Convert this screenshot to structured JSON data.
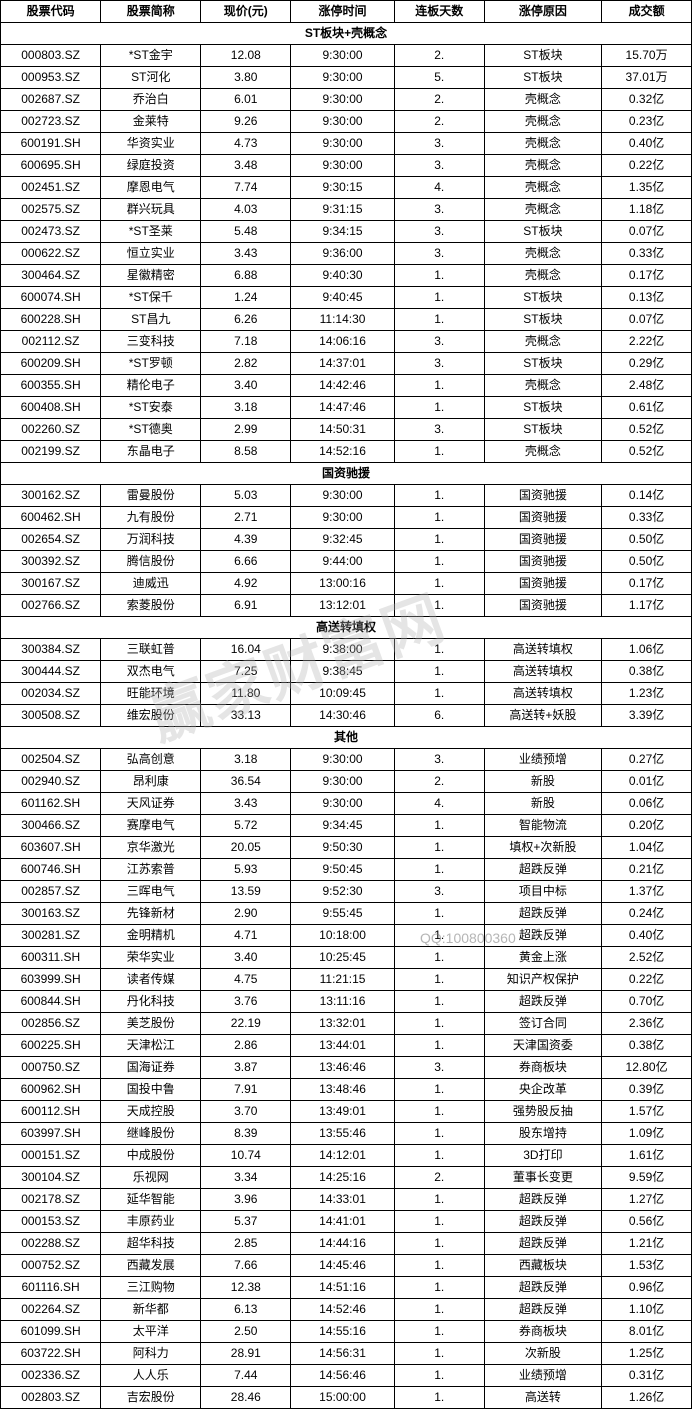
{
  "headers": [
    "股票代码",
    "股票简称",
    "现价(元)",
    "涨停时间",
    "连板天数",
    "涨停原因",
    "成交额"
  ],
  "watermark": "赢家财富网",
  "qq_text": "QQ:100800360",
  "sections": [
    {
      "title": "ST板块+壳概念",
      "rows": [
        [
          "000803.SZ",
          "*ST金宇",
          "12.08",
          "9:30:00",
          "2.",
          "ST板块",
          "15.70万"
        ],
        [
          "000953.SZ",
          "ST河化",
          "3.80",
          "9:30:00",
          "5.",
          "ST板块",
          "37.01万"
        ],
        [
          "002687.SZ",
          "乔治白",
          "6.01",
          "9:30:00",
          "2.",
          "壳概念",
          "0.32亿"
        ],
        [
          "002723.SZ",
          "金莱特",
          "9.26",
          "9:30:00",
          "2.",
          "壳概念",
          "0.23亿"
        ],
        [
          "600191.SH",
          "华资实业",
          "4.73",
          "9:30:00",
          "3.",
          "壳概念",
          "0.40亿"
        ],
        [
          "600695.SH",
          "绿庭投资",
          "3.48",
          "9:30:00",
          "3.",
          "壳概念",
          "0.22亿"
        ],
        [
          "002451.SZ",
          "摩恩电气",
          "7.74",
          "9:30:15",
          "4.",
          "壳概念",
          "1.35亿"
        ],
        [
          "002575.SZ",
          "群兴玩具",
          "4.03",
          "9:31:15",
          "3.",
          "壳概念",
          "1.18亿"
        ],
        [
          "002473.SZ",
          "*ST圣莱",
          "5.48",
          "9:34:15",
          "3.",
          "ST板块",
          "0.07亿"
        ],
        [
          "000622.SZ",
          "恒立实业",
          "3.43",
          "9:36:00",
          "3.",
          "壳概念",
          "0.33亿"
        ],
        [
          "300464.SZ",
          "星徽精密",
          "6.88",
          "9:40:30",
          "1.",
          "壳概念",
          "0.17亿"
        ],
        [
          "600074.SH",
          "*ST保千",
          "1.24",
          "9:40:45",
          "1.",
          "ST板块",
          "0.13亿"
        ],
        [
          "600228.SH",
          "ST昌九",
          "6.26",
          "11:14:30",
          "1.",
          "ST板块",
          "0.07亿"
        ],
        [
          "002112.SZ",
          "三变科技",
          "7.18",
          "14:06:16",
          "3.",
          "壳概念",
          "2.22亿"
        ],
        [
          "600209.SH",
          "*ST罗顿",
          "2.82",
          "14:37:01",
          "3.",
          "ST板块",
          "0.29亿"
        ],
        [
          "600355.SH",
          "精伦电子",
          "3.40",
          "14:42:46",
          "1.",
          "壳概念",
          "2.48亿"
        ],
        [
          "600408.SH",
          "*ST安泰",
          "3.18",
          "14:47:46",
          "1.",
          "ST板块",
          "0.61亿"
        ],
        [
          "002260.SZ",
          "*ST德奥",
          "2.99",
          "14:50:31",
          "3.",
          "ST板块",
          "0.52亿"
        ],
        [
          "002199.SZ",
          "东晶电子",
          "8.58",
          "14:52:16",
          "1.",
          "壳概念",
          "0.52亿"
        ]
      ]
    },
    {
      "title": "国资驰援",
      "rows": [
        [
          "300162.SZ",
          "雷曼股份",
          "5.03",
          "9:30:00",
          "1.",
          "国资驰援",
          "0.14亿"
        ],
        [
          "600462.SH",
          "九有股份",
          "2.71",
          "9:30:00",
          "1.",
          "国资驰援",
          "0.33亿"
        ],
        [
          "002654.SZ",
          "万润科技",
          "4.39",
          "9:32:45",
          "1.",
          "国资驰援",
          "0.50亿"
        ],
        [
          "300392.SZ",
          "腾信股份",
          "6.66",
          "9:44:00",
          "1.",
          "国资驰援",
          "0.50亿"
        ],
        [
          "300167.SZ",
          "迪威迅",
          "4.92",
          "13:00:16",
          "1.",
          "国资驰援",
          "0.17亿"
        ],
        [
          "002766.SZ",
          "索菱股份",
          "6.91",
          "13:12:01",
          "1.",
          "国资驰援",
          "1.17亿"
        ]
      ]
    },
    {
      "title": "高送转填权",
      "rows": [
        [
          "300384.SZ",
          "三联虹普",
          "16.04",
          "9:38:00",
          "1.",
          "高送转填权",
          "1.06亿"
        ],
        [
          "300444.SZ",
          "双杰电气",
          "7.25",
          "9:38:45",
          "1.",
          "高送转填权",
          "0.38亿"
        ],
        [
          "002034.SZ",
          "旺能环境",
          "11.80",
          "10:09:45",
          "1.",
          "高送转填权",
          "1.23亿"
        ],
        [
          "300508.SZ",
          "维宏股份",
          "33.13",
          "14:30:46",
          "6.",
          "高送转+妖股",
          "3.39亿"
        ]
      ]
    },
    {
      "title": "其他",
      "rows": [
        [
          "002504.SZ",
          "弘高创意",
          "3.18",
          "9:30:00",
          "3.",
          "业绩预增",
          "0.27亿"
        ],
        [
          "002940.SZ",
          "昂利康",
          "36.54",
          "9:30:00",
          "2.",
          "新股",
          "0.01亿"
        ],
        [
          "601162.SH",
          "天风证券",
          "3.43",
          "9:30:00",
          "4.",
          "新股",
          "0.06亿"
        ],
        [
          "300466.SZ",
          "赛摩电气",
          "5.72",
          "9:34:45",
          "1.",
          "智能物流",
          "0.20亿"
        ],
        [
          "603607.SH",
          "京华激光",
          "20.05",
          "9:50:30",
          "1.",
          "填权+次新股",
          "1.04亿"
        ],
        [
          "600746.SH",
          "江苏索普",
          "5.93",
          "9:50:45",
          "1.",
          "超跌反弹",
          "0.21亿"
        ],
        [
          "002857.SZ",
          "三晖电气",
          "13.59",
          "9:52:30",
          "3.",
          "项目中标",
          "1.37亿"
        ],
        [
          "300163.SZ",
          "先锋新材",
          "2.90",
          "9:55:45",
          "1.",
          "超跌反弹",
          "0.24亿"
        ],
        [
          "300281.SZ",
          "金明精机",
          "4.71",
          "10:18:00",
          "1.",
          "超跌反弹",
          "0.40亿"
        ],
        [
          "600311.SH",
          "荣华实业",
          "3.40",
          "10:25:45",
          "1.",
          "黄金上涨",
          "2.52亿"
        ],
        [
          "603999.SH",
          "读者传媒",
          "4.75",
          "11:21:15",
          "1.",
          "知识产权保护",
          "0.22亿"
        ],
        [
          "600844.SH",
          "丹化科技",
          "3.76",
          "13:11:16",
          "1.",
          "超跌反弹",
          "0.70亿"
        ],
        [
          "002856.SZ",
          "美芝股份",
          "22.19",
          "13:32:01",
          "1.",
          "签订合同",
          "2.36亿"
        ],
        [
          "600225.SH",
          "天津松江",
          "2.86",
          "13:44:01",
          "1.",
          "天津国资委",
          "0.38亿"
        ],
        [
          "000750.SZ",
          "国海证券",
          "3.87",
          "13:46:46",
          "3.",
          "券商板块",
          "12.80亿"
        ],
        [
          "600962.SH",
          "国投中鲁",
          "7.91",
          "13:48:46",
          "1.",
          "央企改革",
          "0.39亿"
        ],
        [
          "600112.SH",
          "天成控股",
          "3.70",
          "13:49:01",
          "1.",
          "强势股反抽",
          "1.57亿"
        ],
        [
          "603997.SH",
          "继峰股份",
          "8.39",
          "13:55:46",
          "1.",
          "股东增持",
          "1.09亿"
        ],
        [
          "000151.SZ",
          "中成股份",
          "10.74",
          "14:12:01",
          "1.",
          "3D打印",
          "1.61亿"
        ],
        [
          "300104.SZ",
          "乐视网",
          "3.34",
          "14:25:16",
          "2.",
          "董事长变更",
          "9.59亿"
        ],
        [
          "002178.SZ",
          "延华智能",
          "3.96",
          "14:33:01",
          "1.",
          "超跌反弹",
          "1.27亿"
        ],
        [
          "000153.SZ",
          "丰原药业",
          "5.37",
          "14:41:01",
          "1.",
          "超跌反弹",
          "0.56亿"
        ],
        [
          "002288.SZ",
          "超华科技",
          "2.85",
          "14:44:16",
          "1.",
          "超跌反弹",
          "1.21亿"
        ],
        [
          "000752.SZ",
          "西藏发展",
          "7.66",
          "14:45:46",
          "1.",
          "西藏板块",
          "1.53亿"
        ],
        [
          "601116.SH",
          "三江购物",
          "12.38",
          "14:51:16",
          "1.",
          "超跌反弹",
          "0.96亿"
        ],
        [
          "002264.SZ",
          "新华都",
          "6.13",
          "14:52:46",
          "1.",
          "超跌反弹",
          "1.10亿"
        ],
        [
          "601099.SH",
          "太平洋",
          "2.50",
          "14:55:16",
          "1.",
          "券商板块",
          "8.01亿"
        ],
        [
          "603722.SH",
          "阿科力",
          "28.91",
          "14:56:31",
          "1.",
          "次新股",
          "1.25亿"
        ],
        [
          "002336.SZ",
          "人人乐",
          "7.44",
          "14:56:46",
          "1.",
          "业绩预增",
          "0.31亿"
        ],
        [
          "002803.SZ",
          "吉宏股份",
          "28.46",
          "15:00:00",
          "1.",
          "高送转",
          "1.26亿"
        ]
      ]
    }
  ]
}
